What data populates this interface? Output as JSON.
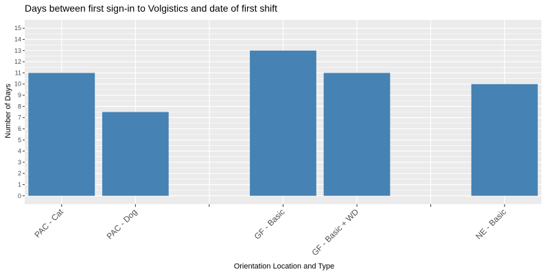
{
  "chart_data": {
    "type": "bar",
    "title": "Days between first sign-in to Volgistics and date of first shift",
    "xlabel": "Orientation Location and Type",
    "ylabel": "Number of Days",
    "categories": [
      "PAC - Cat",
      "PAC - Dog",
      "",
      "GF - Basic",
      "GF - Basic + WD",
      "",
      "NE - Basic"
    ],
    "values": [
      11,
      7.5,
      null,
      13,
      11,
      null,
      10
    ],
    "ylim": [
      -0.75,
      15.75
    ],
    "yticks": [
      0,
      1,
      2,
      3,
      4,
      5,
      6,
      7,
      8,
      9,
      10,
      11,
      12,
      13,
      14,
      15
    ],
    "grid": true,
    "bar_color": "#4682b4",
    "panel_color": "#ebebeb",
    "grid_color": "#ffffff"
  }
}
